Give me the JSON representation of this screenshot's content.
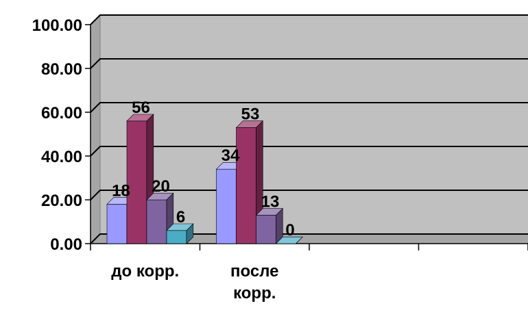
{
  "chart_data": {
    "type": "bar",
    "categories": [
      "до корр.",
      "после корр.",
      "",
      ""
    ],
    "category_lines": [
      [
        "до корр."
      ],
      [
        "после",
        "корр."
      ],
      [],
      []
    ],
    "series": [
      {
        "values": [
          18,
          34,
          null,
          null
        ],
        "labels": [
          "18",
          "34",
          "",
          ""
        ],
        "color": "#9999ff"
      },
      {
        "values": [
          56,
          53,
          null,
          null
        ],
        "labels": [
          "56",
          "53",
          "",
          ""
        ],
        "color": "#993366"
      },
      {
        "values": [
          20,
          13,
          null,
          null
        ],
        "labels": [
          "20",
          "13",
          "",
          ""
        ],
        "color": "#8064a2"
      },
      {
        "values": [
          6,
          0,
          null,
          null
        ],
        "labels": [
          "6",
          "0",
          "",
          ""
        ],
        "color": "#4bacc6"
      }
    ],
    "ylim": [
      0,
      100
    ],
    "yticks": [
      "0.00",
      "20.00",
      "40.00",
      "60.00",
      "80.00",
      "100.00"
    ],
    "grid": true,
    "style": "3d",
    "wall_color": "#c0c0c0"
  }
}
